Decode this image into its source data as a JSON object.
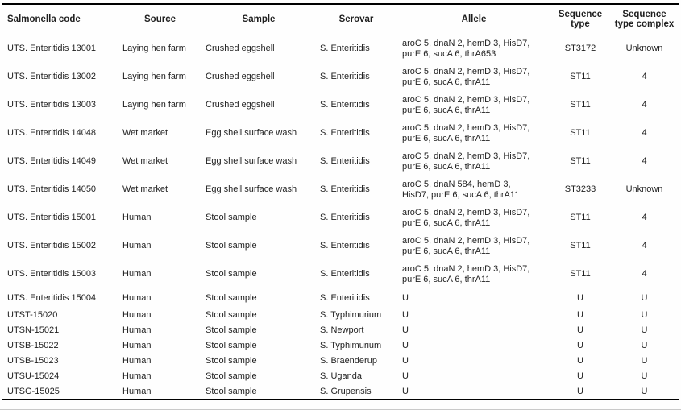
{
  "table": {
    "columns": [
      "Salmonella code",
      "Source",
      "Sample",
      "Serovar",
      "Allele",
      "Sequence\ntype",
      "Sequence\ntype complex"
    ],
    "rows": [
      {
        "code": "UTS. Enteritidis 13001",
        "source": "Laying hen farm",
        "sample": "Crushed eggshell",
        "serovar": "S. Enteritidis",
        "allele": "aroC 5, dnaN 2, hemD 3, HisD7,\npurE 6, sucA 6, thrA653",
        "st": "ST3172",
        "complex": "Unknown"
      },
      {
        "code": "UTS. Enteritidis 13002",
        "source": "Laying hen farm",
        "sample": "Crushed eggshell",
        "serovar": "S. Enteritidis",
        "allele": "aroC 5, dnaN 2, hemD 3, HisD7,\npurE 6, sucA 6, thrA11",
        "st": "ST11",
        "complex": "4"
      },
      {
        "code": "UTS. Enteritidis 13003",
        "source": "Laying hen farm",
        "sample": "Crushed eggshell",
        "serovar": "S. Enteritidis",
        "allele": "aroC 5, dnaN 2, hemD 3, HisD7,\npurE 6, sucA 6, thrA11",
        "st": "ST11",
        "complex": "4"
      },
      {
        "code": "UTS. Enteritidis 14048",
        "source": "Wet market",
        "sample": "Egg shell surface wash",
        "serovar": "S. Enteritidis",
        "allele": "aroC 5, dnaN 2, hemD 3, HisD7,\npurE 6, sucA 6, thrA11",
        "st": "ST11",
        "complex": "4"
      },
      {
        "code": "UTS. Enteritidis 14049",
        "source": "Wet market",
        "sample": "Egg shell surface wash",
        "serovar": "S. Enteritidis",
        "allele": "aroC 5, dnaN 2, hemD 3, HisD7,\npurE 6, sucA 6, thrA11",
        "st": "ST11",
        "complex": "4"
      },
      {
        "code": "UTS. Enteritidis 14050",
        "source": "Wet market",
        "sample": "Egg shell surface wash",
        "serovar": "S. Enteritidis",
        "allele": "aroC 5, dnaN 584, hemD 3,\nHisD7, purE 6, sucA 6, thrA11",
        "st": "ST3233",
        "complex": "Unknown"
      },
      {
        "code": "UTS. Enteritidis 15001",
        "source": "Human",
        "sample": "Stool sample",
        "serovar": "S. Enteritidis",
        "allele": "aroC 5, dnaN 2, hemD 3, HisD7,\npurE 6, sucA 6, thrA11",
        "st": "ST11",
        "complex": "4"
      },
      {
        "code": "UTS. Enteritidis 15002",
        "source": "Human",
        "sample": "Stool sample",
        "serovar": "S. Enteritidis",
        "allele": "aroC 5, dnaN 2, hemD 3, HisD7,\npurE 6, sucA 6, thrA11",
        "st": "ST11",
        "complex": "4"
      },
      {
        "code": "UTS. Enteritidis 15003",
        "source": "Human",
        "sample": "Stool sample",
        "serovar": "S. Enteritidis",
        "allele": "aroC 5, dnaN 2, hemD 3, HisD7,\npurE 6, sucA 6, thrA11",
        "st": "ST11",
        "complex": "4"
      },
      {
        "code": "UTS. Enteritidis 15004",
        "source": "Human",
        "sample": "Stool sample",
        "serovar": "S. Enteritidis",
        "allele": "U",
        "st": "U",
        "complex": "U"
      },
      {
        "code": "UTST-15020",
        "source": "Human",
        "sample": "Stool sample",
        "serovar": "S. Typhimurium",
        "allele": "U",
        "st": "U",
        "complex": "U"
      },
      {
        "code": "UTSN-15021",
        "source": "Human",
        "sample": "Stool sample",
        "serovar": "S. Newport",
        "allele": "U",
        "st": "U",
        "complex": "U"
      },
      {
        "code": "UTSB-15022",
        "source": "Human",
        "sample": "Stool sample",
        "serovar": "S. Typhimurium",
        "allele": "U",
        "st": "U",
        "complex": "U"
      },
      {
        "code": "UTSB-15023",
        "source": "Human",
        "sample": "Stool sample",
        "serovar": "S. Braenderup",
        "allele": "U",
        "st": "U",
        "complex": "U"
      },
      {
        "code": "UTSU-15024",
        "source": "Human",
        "sample": "Stool sample",
        "serovar": "S. Uganda",
        "allele": "U",
        "st": "U",
        "complex": "U"
      },
      {
        "code": "UTSG-15025",
        "source": "Human",
        "sample": "Stool sample",
        "serovar": "S. Grupensis",
        "allele": "U",
        "st": "U",
        "complex": "U"
      }
    ]
  },
  "colors": {
    "text": "#1f1f1f",
    "rule": "#000000",
    "faint_rule": "#c9c9c9",
    "background": "#fefefe"
  }
}
